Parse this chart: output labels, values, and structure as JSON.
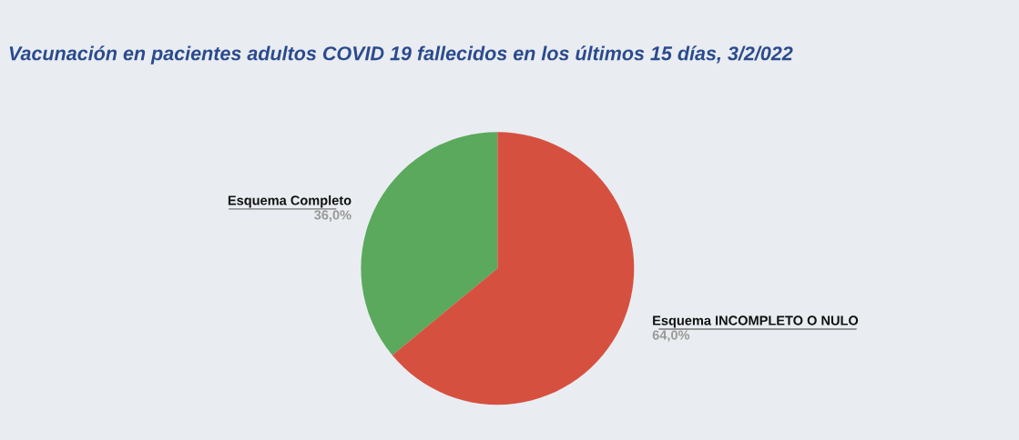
{
  "chart_data": {
    "type": "pie",
    "title": "Vacunación en pacientes adultos COVID 19 fallecidos en los últimos 15 días, 3/2/022",
    "categories": [
      "Esquema Completo",
      "Esquema INCOMPLETO O NULO"
    ],
    "values": [
      36.0,
      64.0
    ],
    "value_labels": [
      "36,0%",
      "64,0%"
    ],
    "colors": [
      "#5aa95c",
      "#d65040"
    ]
  }
}
